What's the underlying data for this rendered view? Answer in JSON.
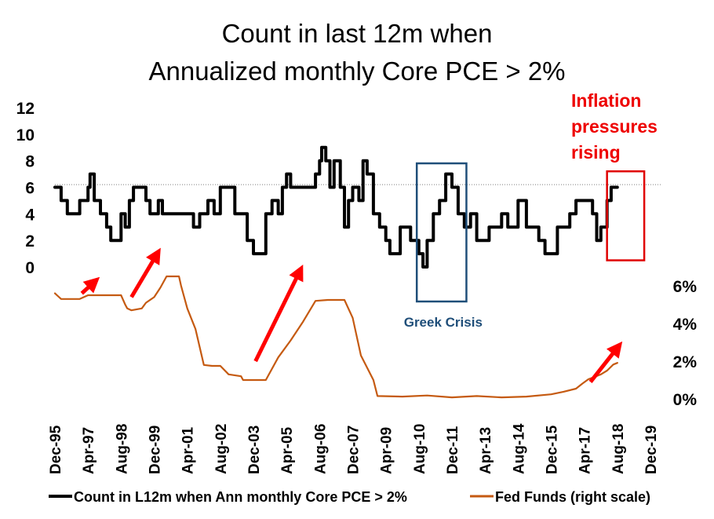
{
  "colors": {
    "count_series": "#000000",
    "fed_series": "#c55a11",
    "arrow": "#ff0000",
    "greek_box": "#1f4e79",
    "inflation_box": "#e00000",
    "reference_line": "#7f7f7f",
    "inflation_text": "#ee0000",
    "greek_text": "#1f4e79"
  },
  "chart_data": {
    "type": "line",
    "title": [
      "Count in last 12m when",
      "Annualized monthly Core PCE > 2%"
    ],
    "x_tick_labels": [
      "Dec-95",
      "Apr-97",
      "Aug-98",
      "Dec-99",
      "Apr-01",
      "Aug-02",
      "Dec-03",
      "Apr-05",
      "Aug-06",
      "Dec-07",
      "Apr-09",
      "Aug-10",
      "Dec-11",
      "Apr-13",
      "Aug-14",
      "Dec-15",
      "Apr-17",
      "Aug-18",
      "Dec-19"
    ],
    "x_range": [
      "Dec-95",
      "Dec-19"
    ],
    "left_axis": {
      "ticks": [
        "0",
        "2",
        "4",
        "6",
        "8",
        "10",
        "12"
      ],
      "range": [
        0,
        12
      ]
    },
    "right_axis": {
      "ticks": [
        "0%",
        "2%",
        "4%",
        "6%"
      ],
      "range": [
        0,
        6
      ]
    },
    "reference_line": {
      "axis": "left",
      "value": 6.2
    },
    "series": [
      {
        "name": "Count in L12m when Ann monthly Core PCE > 2%",
        "axis": "left",
        "points": [
          [
            "Dec-95",
            6
          ],
          [
            "Mar-96",
            5
          ],
          [
            "Jun-96",
            4
          ],
          [
            "Sep-96",
            4
          ],
          [
            "Dec-96",
            5
          ],
          [
            "Feb-97",
            5
          ],
          [
            "Apr-97",
            6
          ],
          [
            "May-97",
            7
          ],
          [
            "Jul-97",
            5
          ],
          [
            "Oct-97",
            4
          ],
          [
            "Jan-98",
            3
          ],
          [
            "Mar-98",
            2
          ],
          [
            "Jun-98",
            2
          ],
          [
            "Aug-98",
            4
          ],
          [
            "Oct-98",
            3
          ],
          [
            "Dec-98",
            5
          ],
          [
            "Feb-99",
            6
          ],
          [
            "Jun-99",
            6
          ],
          [
            "Aug-99",
            5
          ],
          [
            "Oct-99",
            4
          ],
          [
            "Dec-99",
            4
          ],
          [
            "Feb-00",
            5
          ],
          [
            "Apr-00",
            4
          ],
          [
            "Jan-01",
            4
          ],
          [
            "Apr-01",
            4
          ],
          [
            "Jul-01",
            3
          ],
          [
            "Oct-01",
            4
          ],
          [
            "Feb-02",
            5
          ],
          [
            "May-02",
            4
          ],
          [
            "Aug-02",
            6
          ],
          [
            "Dec-02",
            6
          ],
          [
            "Mar-03",
            4
          ],
          [
            "Jun-03",
            4
          ],
          [
            "Sep-03",
            2
          ],
          [
            "Dec-03",
            1
          ],
          [
            "Mar-04",
            1
          ],
          [
            "Jun-04",
            4
          ],
          [
            "Sep-04",
            5
          ],
          [
            "Dec-04",
            4
          ],
          [
            "Feb-05",
            6
          ],
          [
            "Apr-05",
            7
          ],
          [
            "Jun-05",
            6
          ],
          [
            "Dec-05",
            6
          ],
          [
            "Apr-06",
            6
          ],
          [
            "Jun-06",
            7
          ],
          [
            "Aug-06",
            8
          ],
          [
            "Sep-06",
            9
          ],
          [
            "Nov-06",
            8
          ],
          [
            "Jan-07",
            6
          ],
          [
            "Mar-07",
            8
          ],
          [
            "Jun-07",
            6
          ],
          [
            "Aug-07",
            3
          ],
          [
            "Oct-07",
            5
          ],
          [
            "Dec-07",
            6
          ],
          [
            "Mar-08",
            5
          ],
          [
            "May-08",
            8
          ],
          [
            "Jul-08",
            7
          ],
          [
            "Oct-08",
            4
          ],
          [
            "Jan-09",
            3
          ],
          [
            "Apr-09",
            2
          ],
          [
            "Jun-09",
            1
          ],
          [
            "Sep-09",
            1
          ],
          [
            "Nov-09",
            3
          ],
          [
            "Feb-10",
            3
          ],
          [
            "Apr-10",
            2
          ],
          [
            "Jun-10",
            2
          ],
          [
            "Aug-10",
            1
          ],
          [
            "Oct-10",
            0
          ],
          [
            "Dec-10",
            2
          ],
          [
            "Mar-11",
            4
          ],
          [
            "Jun-11",
            5
          ],
          [
            "Sep-11",
            7
          ],
          [
            "Dec-11",
            6
          ],
          [
            "Mar-12",
            4
          ],
          [
            "Jun-12",
            3
          ],
          [
            "Sep-12",
            4
          ],
          [
            "Dec-12",
            2
          ],
          [
            "Mar-13",
            2
          ],
          [
            "Jun-13",
            3
          ],
          [
            "Sep-13",
            3
          ],
          [
            "Dec-13",
            4
          ],
          [
            "Mar-14",
            3
          ],
          [
            "Jun-14",
            3
          ],
          [
            "Aug-14",
            5
          ],
          [
            "Oct-14",
            5
          ],
          [
            "Dec-14",
            3
          ],
          [
            "Mar-15",
            3
          ],
          [
            "Jun-15",
            2
          ],
          [
            "Sep-15",
            1
          ],
          [
            "Dec-15",
            1
          ],
          [
            "Mar-16",
            3
          ],
          [
            "Jun-16",
            3
          ],
          [
            "Sep-16",
            4
          ],
          [
            "Dec-16",
            5
          ],
          [
            "Apr-17",
            5
          ],
          [
            "Aug-17",
            4
          ],
          [
            "Oct-17",
            2
          ],
          [
            "Dec-17",
            3
          ],
          [
            "Mar-18",
            5
          ],
          [
            "May-18",
            6
          ],
          [
            "Jul-18",
            6
          ],
          [
            "Aug-18",
            6
          ]
        ]
      },
      {
        "name": "Fed Funds (right scale)",
        "axis": "right",
        "points": [
          [
            "Dec-95",
            5.6
          ],
          [
            "Jan-96",
            5.5
          ],
          [
            "Mar-96",
            5.3
          ],
          [
            "Jun-96",
            5.3
          ],
          [
            "Dec-96",
            5.3
          ],
          [
            "Apr-97",
            5.5
          ],
          [
            "Dec-97",
            5.5
          ],
          [
            "Aug-98",
            5.5
          ],
          [
            "Oct-98",
            5.0
          ],
          [
            "Nov-98",
            4.8
          ],
          [
            "Jan-99",
            4.7
          ],
          [
            "Jun-99",
            4.8
          ],
          [
            "Aug-99",
            5.1
          ],
          [
            "Dec-99",
            5.4
          ],
          [
            "Mar-00",
            5.9
          ],
          [
            "Jun-00",
            6.5
          ],
          [
            "Dec-00",
            6.5
          ],
          [
            "Jan-01",
            6.0
          ],
          [
            "Apr-01",
            4.8
          ],
          [
            "Aug-01",
            3.7
          ],
          [
            "Dec-01",
            1.8
          ],
          [
            "Apr-02",
            1.75
          ],
          [
            "Aug-02",
            1.75
          ],
          [
            "Dec-02",
            1.3
          ],
          [
            "Jun-03",
            1.2
          ],
          [
            "Jul-03",
            1.0
          ],
          [
            "Jun-04",
            1.0
          ],
          [
            "Dec-04",
            2.2
          ],
          [
            "Jun-05",
            3.1
          ],
          [
            "Dec-05",
            4.1
          ],
          [
            "Jun-06",
            5.2
          ],
          [
            "Dec-06",
            5.25
          ],
          [
            "Aug-07",
            5.25
          ],
          [
            "Dec-07",
            4.3
          ],
          [
            "Apr-08",
            2.3
          ],
          [
            "Oct-08",
            1.0
          ],
          [
            "Dec-08",
            0.15
          ],
          [
            "Dec-09",
            0.12
          ],
          [
            "Dec-10",
            0.18
          ],
          [
            "Dec-11",
            0.08
          ],
          [
            "Dec-12",
            0.15
          ],
          [
            "Dec-13",
            0.08
          ],
          [
            "Dec-14",
            0.12
          ],
          [
            "Dec-15",
            0.24
          ],
          [
            "Jun-16",
            0.38
          ],
          [
            "Dec-16",
            0.54
          ],
          [
            "Mar-17",
            0.8
          ],
          [
            "Jun-17",
            1.04
          ],
          [
            "Dec-17",
            1.3
          ],
          [
            "Mar-18",
            1.5
          ],
          [
            "Jun-18",
            1.82
          ],
          [
            "Aug-18",
            1.91
          ]
        ]
      }
    ],
    "arrows": [
      {
        "from": [
          "Jan-97",
          5.6
        ],
        "to": [
          "Aug-97",
          6.3
        ],
        "axis": "right"
      },
      {
        "from": [
          "Jan-99",
          5.4
        ],
        "to": [
          "Feb-00",
          7.8
        ],
        "axis": "right"
      },
      {
        "from": [
          "Jan-04",
          2.0
        ],
        "to": [
          "Nov-05",
          6.9
        ],
        "axis": "right"
      },
      {
        "from": [
          "Jul-17",
          0.9
        ],
        "to": [
          "Sep-18",
          2.85
        ],
        "axis": "right"
      }
    ],
    "annotations": [
      {
        "name": "greek-crisis",
        "text": "Greek Crisis",
        "box_from": "Jul-10",
        "box_to": "Jul-12",
        "box_top": 7.8,
        "box_bottom": -2.6
      },
      {
        "name": "inflation-pressures",
        "text": [
          "Inflation",
          "pressures",
          "rising"
        ],
        "box_from": "Mar-18",
        "box_to": "Sep-19",
        "box_top": 7.2,
        "box_bottom": 0.5
      }
    ],
    "legend": {
      "position": "bottom",
      "entries": [
        "Count in L12m when Ann monthly Core PCE > 2%",
        "Fed Funds (right scale)"
      ]
    }
  }
}
